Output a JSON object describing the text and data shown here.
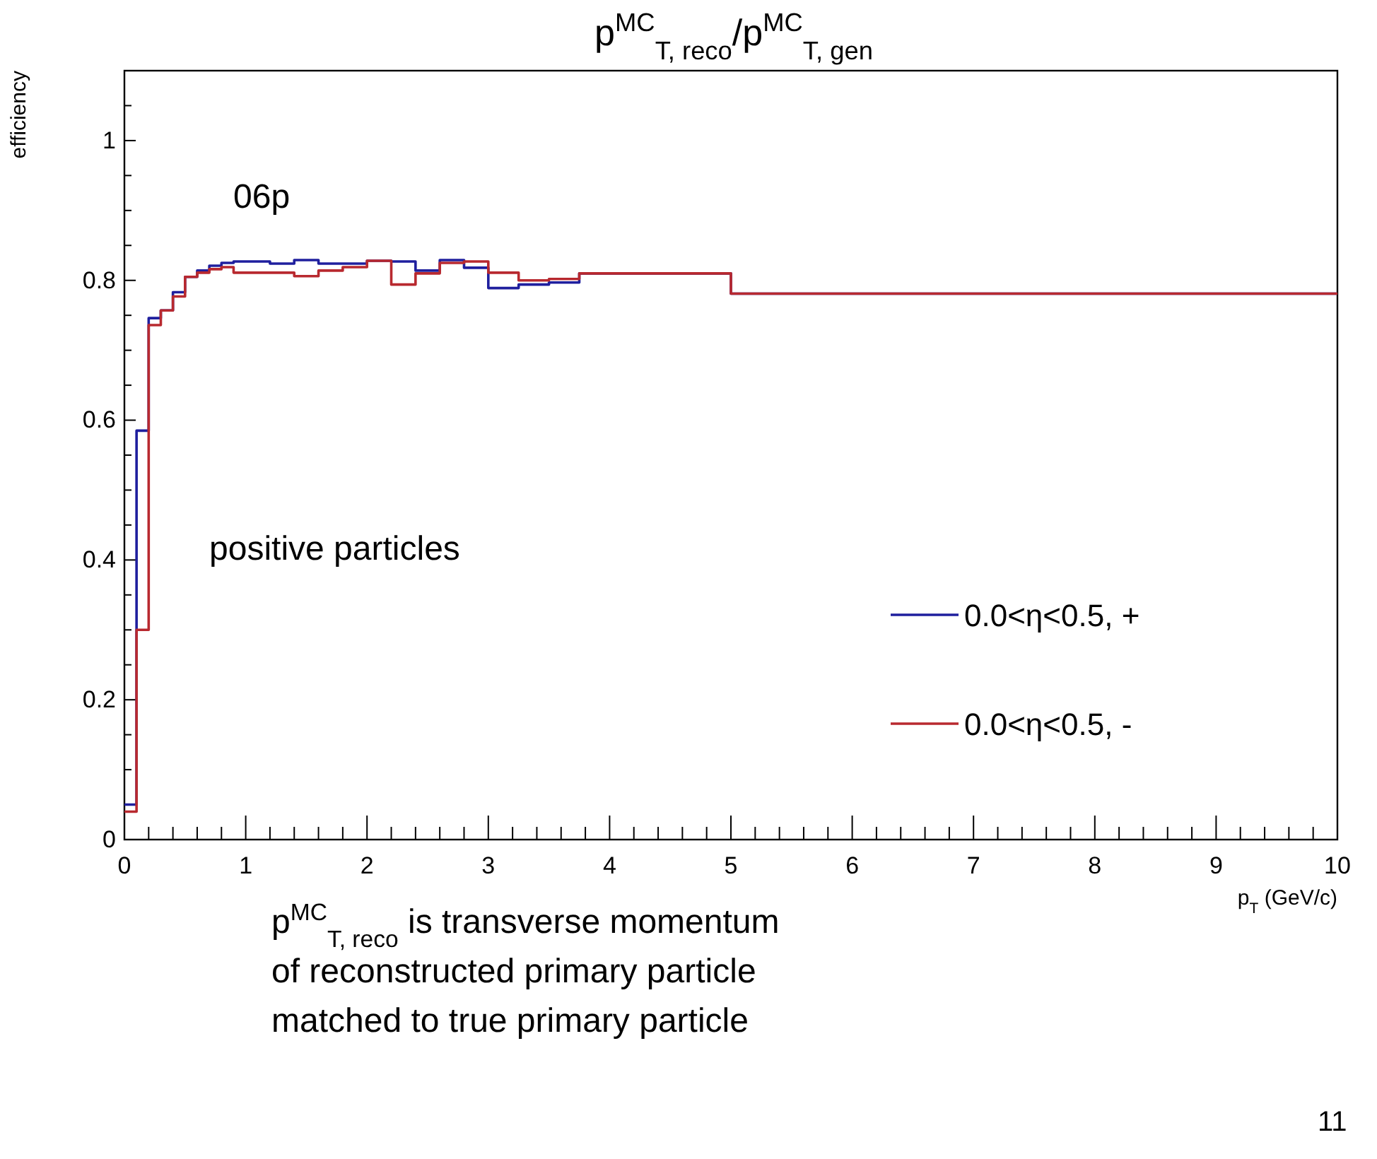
{
  "chart_data": {
    "type": "histogram",
    "title": "p$^{MC}$$_{T, reco}$/p$^{MC}$$_{T, gen}$",
    "xlabel": "p$_{T}$ (GeV/c)",
    "ylabel": "efficiency",
    "bins": [
      0,
      0.1,
      0.2,
      0.3,
      0.4,
      0.5,
      0.6,
      0.7,
      0.8,
      0.9,
      1.0,
      1.2,
      1.4,
      1.6,
      1.8,
      2.0,
      2.2,
      2.4,
      2.6,
      2.8,
      3.0,
      3.25,
      3.5,
      3.75,
      4.0,
      5.0,
      10.0
    ],
    "series": [
      {
        "name": "0.0<η<0.5, +",
        "color": "#1f1f9e",
        "values": [
          0.05,
          0.585,
          0.746,
          0.757,
          0.783,
          0.805,
          0.814,
          0.821,
          0.825,
          0.827,
          0.827,
          0.824,
          0.829,
          0.824,
          0.824,
          0.828,
          0.827,
          0.814,
          0.829,
          0.818,
          0.789,
          0.794,
          0.797,
          0.81,
          0.81,
          0.781
        ]
      },
      {
        "name": "0.0<η<0.5, -",
        "color": "#b8292f",
        "values": [
          0.04,
          0.3,
          0.736,
          0.757,
          0.777,
          0.805,
          0.811,
          0.816,
          0.819,
          0.811,
          0.811,
          0.811,
          0.806,
          0.814,
          0.819,
          0.828,
          0.794,
          0.81,
          0.825,
          0.827,
          0.811,
          0.8,
          0.802,
          0.81,
          0.81,
          0.781
        ]
      }
    ],
    "xlim": [
      0,
      10
    ],
    "ylim": [
      0,
      1.1
    ],
    "xticks": [
      0,
      {
        "value": 0.2,
        "label": null
      },
      {
        "value": 0.4,
        "label": null
      },
      {
        "value": 0.6,
        "label": null
      },
      {
        "value": 0.8,
        "label": null
      },
      1,
      {
        "value": 1.2,
        "label": null
      },
      {
        "value": 1.4,
        "label": null
      },
      {
        "value": 1.6,
        "label": null
      },
      {
        "value": 1.8,
        "label": null
      },
      2,
      {
        "value": 2.2,
        "label": null
      },
      {
        "value": 2.4,
        "label": null
      },
      {
        "value": 2.6,
        "label": null
      },
      {
        "value": 2.8,
        "label": null
      },
      3,
      {
        "value": 3.2,
        "label": null
      },
      {
        "value": 3.4,
        "label": null
      },
      {
        "value": 3.6,
        "label": null
      },
      {
        "value": 3.8,
        "label": null
      },
      4,
      {
        "value": 4.2,
        "label": null
      },
      {
        "value": 4.4,
        "label": null
      },
      {
        "value": 4.6,
        "label": null
      },
      {
        "value": 4.8,
        "label": null
      },
      5,
      {
        "value": 5.2,
        "label": null
      },
      {
        "value": 5.4,
        "label": null
      },
      {
        "value": 5.6,
        "label": null
      },
      {
        "value": 5.8,
        "label": null
      },
      6,
      {
        "value": 6.2,
        "label": null
      },
      {
        "value": 6.4,
        "label": null
      },
      {
        "value": 6.6,
        "label": null
      },
      {
        "value": 6.8,
        "label": null
      },
      7,
      {
        "value": 7.2,
        "label": null
      },
      {
        "value": 7.4,
        "label": null
      },
      {
        "value": 7.6,
        "label": null
      },
      {
        "value": 7.8,
        "label": null
      },
      8,
      {
        "value": 8.2,
        "label": null
      },
      {
        "value": 8.4,
        "label": null
      },
      {
        "value": 8.6,
        "label": null
      },
      {
        "value": 8.8,
        "label": null
      },
      9,
      {
        "value": 9.2,
        "label": null
      },
      {
        "value": 9.4,
        "label": null
      },
      {
        "value": 9.6,
        "label": null
      },
      {
        "value": 9.8,
        "label": null
      },
      10
    ],
    "yticks": [
      0,
      {
        "value": 0.05,
        "label": null
      },
      {
        "value": 0.1,
        "label": null
      },
      {
        "value": 0.15,
        "label": null
      },
      0.2,
      {
        "value": 0.25,
        "label": null
      },
      {
        "value": 0.3,
        "label": null
      },
      {
        "value": 0.35,
        "label": null
      },
      0.4,
      {
        "value": 0.45,
        "label": null
      },
      {
        "value": 0.5,
        "label": null
      },
      {
        "value": 0.55,
        "label": null
      },
      0.6,
      {
        "value": 0.65,
        "label": null
      },
      {
        "value": 0.7,
        "label": null
      },
      {
        "value": 0.75,
        "label": null
      },
      0.8,
      {
        "value": 0.85,
        "label": null
      },
      {
        "value": 0.9,
        "label": null
      },
      {
        "value": 0.95,
        "label": null
      },
      1,
      {
        "value": 1.05,
        "label": null
      }
    ],
    "legend": "right",
    "annotations": [
      "06p",
      "positive particles",
      "p$^{MC}$$_{T, reco}$ is transverse momentum of reconstructed primary particle matched to true primary particle",
      "11"
    ]
  }
}
